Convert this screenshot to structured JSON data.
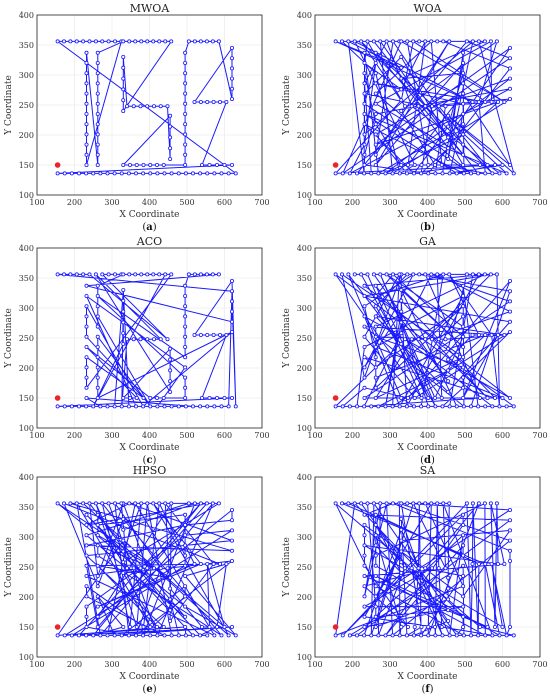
{
  "colors": {
    "route": "#1a1aff",
    "start": "#e8262a",
    "frame": "#222222",
    "grid": "#e6e6e6"
  },
  "chart_data": [
    {
      "type": "line",
      "title": "MWOA",
      "xlabel": "X Coordinate",
      "ylabel": "Y Coordinate",
      "xlim": [
        100,
        700
      ],
      "ylim": [
        100,
        400
      ],
      "xticks": [
        "100",
        "200",
        "300",
        "400",
        "500",
        "600",
        "700"
      ],
      "yticks": [
        "100",
        "150",
        "200",
        "250",
        "300",
        "350",
        "400"
      ],
      "caption_open": "(",
      "caption_letter": "a",
      "caption_close": ")",
      "start_point": [
        155,
        150
      ],
      "seed": 11,
      "style": "tsp"
    },
    {
      "type": "line",
      "title": "WOA",
      "xlabel": "X Coordinate",
      "ylabel": "Y Coordinate",
      "xlim": [
        100,
        700
      ],
      "ylim": [
        100,
        400
      ],
      "xticks": [
        "100",
        "200",
        "300",
        "400",
        "500",
        "600",
        "700"
      ],
      "yticks": [
        "100",
        "150",
        "200",
        "250",
        "300",
        "350",
        "400"
      ],
      "caption_open": "(",
      "caption_letter": "b",
      "caption_close": ")",
      "start_point": [
        155,
        150
      ],
      "seed": 23,
      "style": "random"
    },
    {
      "type": "line",
      "title": "ACO",
      "xlabel": "X Coordinate",
      "ylabel": "Y Coordinate",
      "xlim": [
        100,
        700
      ],
      "ylim": [
        100,
        400
      ],
      "xticks": [
        "100",
        "200",
        "300",
        "400",
        "500",
        "600",
        "700"
      ],
      "yticks": [
        "100",
        "150",
        "200",
        "250",
        "300",
        "350",
        "400"
      ],
      "caption_open": "(",
      "caption_letter": "c",
      "caption_close": ")",
      "start_point": [
        155,
        150
      ],
      "seed": 37,
      "style": "tsp-rough"
    },
    {
      "type": "line",
      "title": "GA",
      "xlabel": "X Coordinate",
      "ylabel": "Y Coordinate",
      "xlim": [
        100,
        700
      ],
      "ylim": [
        100,
        400
      ],
      "xticks": [
        "100",
        "200",
        "300",
        "400",
        "500",
        "600",
        "700"
      ],
      "yticks": [
        "100",
        "150",
        "200",
        "250",
        "300",
        "350",
        "400"
      ],
      "caption_open": "(",
      "caption_letter": "d",
      "caption_close": ")",
      "start_point": [
        155,
        150
      ],
      "seed": 41,
      "style": "mixed"
    },
    {
      "type": "line",
      "title": "HPSO",
      "xlabel": "X Coordinate",
      "ylabel": "Y Coordinate",
      "xlim": [
        100,
        700
      ],
      "ylim": [
        100,
        400
      ],
      "xticks": [
        "100",
        "200",
        "300",
        "400",
        "500",
        "600",
        "700"
      ],
      "yticks": [
        "100",
        "150",
        "200",
        "250",
        "300",
        "350",
        "400"
      ],
      "caption_open": "(",
      "caption_letter": "e",
      "caption_close": ")",
      "start_point": [
        155,
        150
      ],
      "seed": 53,
      "style": "mixed"
    },
    {
      "type": "line",
      "title": "SA",
      "xlabel": "X Coordinate",
      "ylabel": "Y Coordinate",
      "xlim": [
        100,
        700
      ],
      "ylim": [
        100,
        400
      ],
      "xticks": [
        "100",
        "200",
        "300",
        "400",
        "500",
        "600",
        "700"
      ],
      "yticks": [
        "100",
        "150",
        "200",
        "250",
        "300",
        "350",
        "400"
      ],
      "caption_open": "(",
      "caption_letter": "f",
      "caption_close": ")",
      "start_point": [
        155,
        150
      ],
      "seed": 67,
      "style": "grid"
    }
  ]
}
